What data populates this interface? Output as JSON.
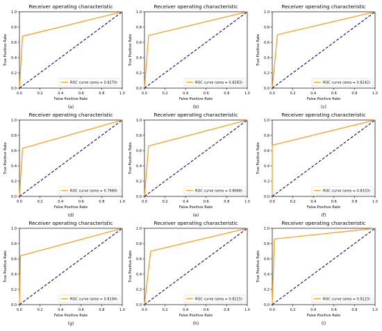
{
  "chart_data": [
    {
      "type": "line",
      "panel_label": "(a)",
      "title": "Receiver operating characteristic",
      "xlabel": "False Positive Rate",
      "ylabel": "True Positive Rate",
      "xlim": [
        0,
        1
      ],
      "ylim": [
        0,
        1
      ],
      "xticks": [
        "0.0",
        "0.2",
        "0.4",
        "0.6",
        "0.8",
        "1.0"
      ],
      "yticks": [
        "0.0",
        "0.2",
        "0.4",
        "0.6",
        "0.8",
        "1.0"
      ],
      "legend_position": "lower-right",
      "series": [
        {
          "name": "ROC curve (area = 0.8270)",
          "color": "#ff9f1c",
          "x": [
            0.0,
            0.03,
            1.0
          ],
          "y": [
            0.0,
            0.68,
            1.0
          ]
        },
        {
          "color": "#00008b",
          "style": "dashed",
          "x": [
            0,
            1
          ],
          "y": [
            0,
            1
          ]
        }
      ]
    },
    {
      "type": "line",
      "panel_label": "(b)",
      "title": "Receiver operating characteristic",
      "xlabel": "False Positive Rate",
      "ylabel": "True Positive Rate",
      "xlim": [
        0,
        1
      ],
      "ylim": [
        0,
        1
      ],
      "xticks": [
        "0.0",
        "0.2",
        "0.4",
        "0.6",
        "0.8",
        "1.0"
      ],
      "yticks": [
        "0.0",
        "0.2",
        "0.4",
        "0.6",
        "0.8",
        "1.0"
      ],
      "legend_position": "lower-right",
      "series": [
        {
          "name": "ROC curve (area = 0.8283)",
          "color": "#ff9f1c",
          "x": [
            0.0,
            0.04,
            1.0
          ],
          "y": [
            0.0,
            0.69,
            1.0
          ]
        },
        {
          "color": "#00008b",
          "style": "dashed",
          "x": [
            0,
            1
          ],
          "y": [
            0,
            1
          ]
        }
      ]
    },
    {
      "type": "line",
      "panel_label": "(c)",
      "title": "Receiver operating characteristic",
      "xlabel": "False Positive Rate",
      "ylabel": "True Positive Rate",
      "xlim": [
        0,
        1
      ],
      "ylim": [
        0,
        1
      ],
      "xticks": [
        "0.0",
        "0.2",
        "0.4",
        "0.6",
        "0.8",
        "1.0"
      ],
      "yticks": [
        "0.0",
        "0.2",
        "0.4",
        "0.6",
        "0.8",
        "1.0"
      ],
      "legend_position": "lower-right",
      "series": [
        {
          "name": "ROC curve (area = 0.8242)",
          "color": "#ff9f1c",
          "x": [
            0.0,
            0.05,
            1.0
          ],
          "y": [
            0.0,
            0.7,
            1.0
          ]
        },
        {
          "color": "#00008b",
          "style": "dashed",
          "x": [
            0,
            1
          ],
          "y": [
            0,
            1
          ]
        }
      ]
    },
    {
      "type": "line",
      "panel_label": "(d)",
      "title": "Receiver operating characteristic",
      "xlabel": "False Positive Rate",
      "ylabel": "True Positive Rate",
      "xlim": [
        0,
        1
      ],
      "ylim": [
        0,
        1
      ],
      "xticks": [
        "0.0",
        "0.2",
        "0.4",
        "0.6",
        "0.8",
        "1.0"
      ],
      "yticks": [
        "0.0",
        "0.2",
        "0.4",
        "0.6",
        "0.8",
        "1.0"
      ],
      "legend_position": "lower-right",
      "series": [
        {
          "name": "ROC curve (area = 0.7969)",
          "color": "#ff9f1c",
          "x": [
            0.0,
            0.03,
            1.0
          ],
          "y": [
            0.0,
            0.63,
            1.0
          ]
        },
        {
          "color": "#00008b",
          "style": "dashed",
          "x": [
            0,
            1
          ],
          "y": [
            0,
            1
          ]
        }
      ]
    },
    {
      "type": "line",
      "panel_label": "(e)",
      "title": "Receiver operating characteristic",
      "xlabel": "False Positive Rate",
      "ylabel": "True Positive Rate",
      "xlim": [
        0,
        1
      ],
      "ylim": [
        0,
        1
      ],
      "xticks": [
        "0.0",
        "0.2",
        "0.4",
        "0.6",
        "0.8",
        "1.0"
      ],
      "yticks": [
        "0.0",
        "0.2",
        "0.4",
        "0.6",
        "0.8",
        "1.0"
      ],
      "legend_position": "lower-right",
      "series": [
        {
          "name": "ROC curve (area = 0.8068)",
          "color": "#ff9f1c",
          "x": [
            0.0,
            0.04,
            1.0
          ],
          "y": [
            0.0,
            0.66,
            1.0
          ]
        },
        {
          "color": "#00008b",
          "style": "dashed",
          "x": [
            0,
            1
          ],
          "y": [
            0,
            1
          ]
        }
      ]
    },
    {
      "type": "line",
      "panel_label": "(f)",
      "title": "Receiver operating characteristic",
      "xlabel": "False Positive Rate",
      "ylabel": "True Positive Rate",
      "xlim": [
        0,
        1
      ],
      "ylim": [
        0,
        1
      ],
      "xticks": [
        "0.0",
        "0.2",
        "0.4",
        "0.6",
        "0.8",
        "1.0"
      ],
      "yticks": [
        "0.0",
        "0.2",
        "0.4",
        "0.6",
        "0.8",
        "1.0"
      ],
      "legend_position": "lower-right",
      "series": [
        {
          "name": "ROC curve (area = 0.8333)",
          "color": "#ff9f1c",
          "x": [
            0.0,
            0.0,
            1.0
          ],
          "y": [
            0.0,
            0.67,
            1.0
          ]
        },
        {
          "color": "#00008b",
          "style": "dashed",
          "x": [
            0,
            1
          ],
          "y": [
            0,
            1
          ]
        }
      ]
    },
    {
      "type": "line",
      "panel_label": "(g)",
      "title": "Receiver operating characteristic",
      "xlabel": "False Positive Rate",
      "ylabel": "True Positive Rate",
      "xlim": [
        0,
        1
      ],
      "ylim": [
        0,
        1
      ],
      "xticks": [
        "0.0",
        "0.2",
        "0.4",
        "0.6",
        "0.8",
        "1.0"
      ],
      "yticks": [
        "0.0",
        "0.2",
        "0.4",
        "0.6",
        "0.8",
        "1.0"
      ],
      "legend_position": "lower-right",
      "series": [
        {
          "name": "ROC curve (area = 0.8194)",
          "color": "#ff9f1c",
          "x": [
            0.0,
            0.01,
            1.0
          ],
          "y": [
            0.0,
            0.64,
            1.0
          ]
        },
        {
          "color": "#00008b",
          "style": "dashed",
          "x": [
            0,
            1
          ],
          "y": [
            0,
            1
          ]
        }
      ]
    },
    {
      "type": "line",
      "panel_label": "(h)",
      "title": "Receiver operating characteristic",
      "xlabel": "False Positive Rate",
      "ylabel": "True Positive Rate",
      "xlim": [
        0,
        1
      ],
      "ylim": [
        0,
        1
      ],
      "xticks": [
        "0.0",
        "0.2",
        "0.4",
        "0.6",
        "0.8",
        "1.0"
      ],
      "yticks": [
        "0.0",
        "0.2",
        "0.4",
        "0.6",
        "0.8",
        "1.0"
      ],
      "legend_position": "lower-right",
      "series": [
        {
          "name": "ROC curve (area = 0.8215)",
          "color": "#ff9f1c",
          "x": [
            0.0,
            0.06,
            1.0
          ],
          "y": [
            0.0,
            0.7,
            1.0
          ]
        },
        {
          "color": "#00008b",
          "style": "dashed",
          "x": [
            0,
            1
          ],
          "y": [
            0,
            1
          ]
        }
      ]
    },
    {
      "type": "line",
      "panel_label": "(i)",
      "title": "Receiver operating characteristic",
      "xlabel": "False Positive Rate",
      "ylabel": "True Positive Rate",
      "xlim": [
        0,
        1
      ],
      "ylim": [
        0,
        1
      ],
      "xticks": [
        "0.0",
        "0.2",
        "0.4",
        "0.6",
        "0.8",
        "1.0"
      ],
      "yticks": [
        "0.0",
        "0.2",
        "0.4",
        "0.6",
        "0.8",
        "1.0"
      ],
      "legend_position": "lower-right",
      "series": [
        {
          "name": "ROC curve (area = 0.9223)",
          "color": "#ff9f1c",
          "x": [
            0.0,
            0.02,
            1.0
          ],
          "y": [
            0.0,
            0.86,
            1.0
          ]
        },
        {
          "color": "#00008b",
          "style": "dashed",
          "x": [
            0,
            1
          ],
          "y": [
            0,
            1
          ]
        }
      ]
    }
  ]
}
